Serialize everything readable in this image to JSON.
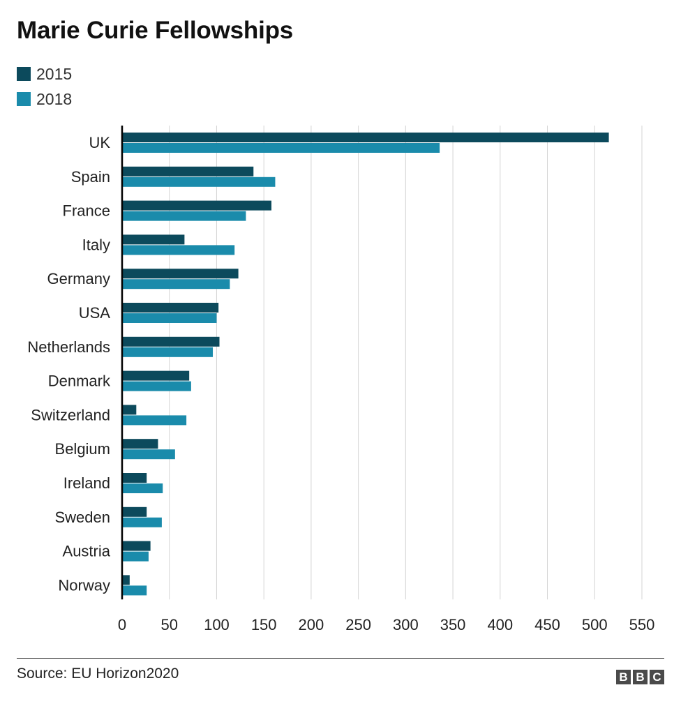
{
  "title": "Marie Curie Fellowships",
  "source": "Source: EU Horizon2020",
  "logo_letters": [
    "B",
    "B",
    "C"
  ],
  "colors": {
    "series_2015": "#0c4a5c",
    "series_2018": "#1a8bab",
    "grid": "#d4d4d4",
    "axis": "#000000"
  },
  "chart_data": {
    "type": "bar",
    "orientation": "horizontal",
    "title": "Marie Curie Fellowships",
    "categories": [
      "UK",
      "Spain",
      "France",
      "Italy",
      "Germany",
      "USA",
      "Netherlands",
      "Denmark",
      "Switzerland",
      "Belgium",
      "Ireland",
      "Sweden",
      "Austria",
      "Norway"
    ],
    "series": [
      {
        "name": "2015",
        "color": "#0c4a5c",
        "values": [
          515,
          139,
          158,
          66,
          123,
          102,
          103,
          71,
          15,
          38,
          26,
          26,
          30,
          8
        ]
      },
      {
        "name": "2018",
        "color": "#1a8bab",
        "values": [
          336,
          162,
          131,
          119,
          114,
          100,
          96,
          73,
          68,
          56,
          43,
          42,
          28,
          26
        ]
      }
    ],
    "xlim": [
      0,
      550
    ],
    "xticks": [
      0,
      50,
      100,
      150,
      200,
      250,
      300,
      350,
      400,
      450,
      500,
      550
    ],
    "xlabel": "",
    "ylabel": "",
    "grid": "vertical",
    "legend_position": "top-left"
  }
}
